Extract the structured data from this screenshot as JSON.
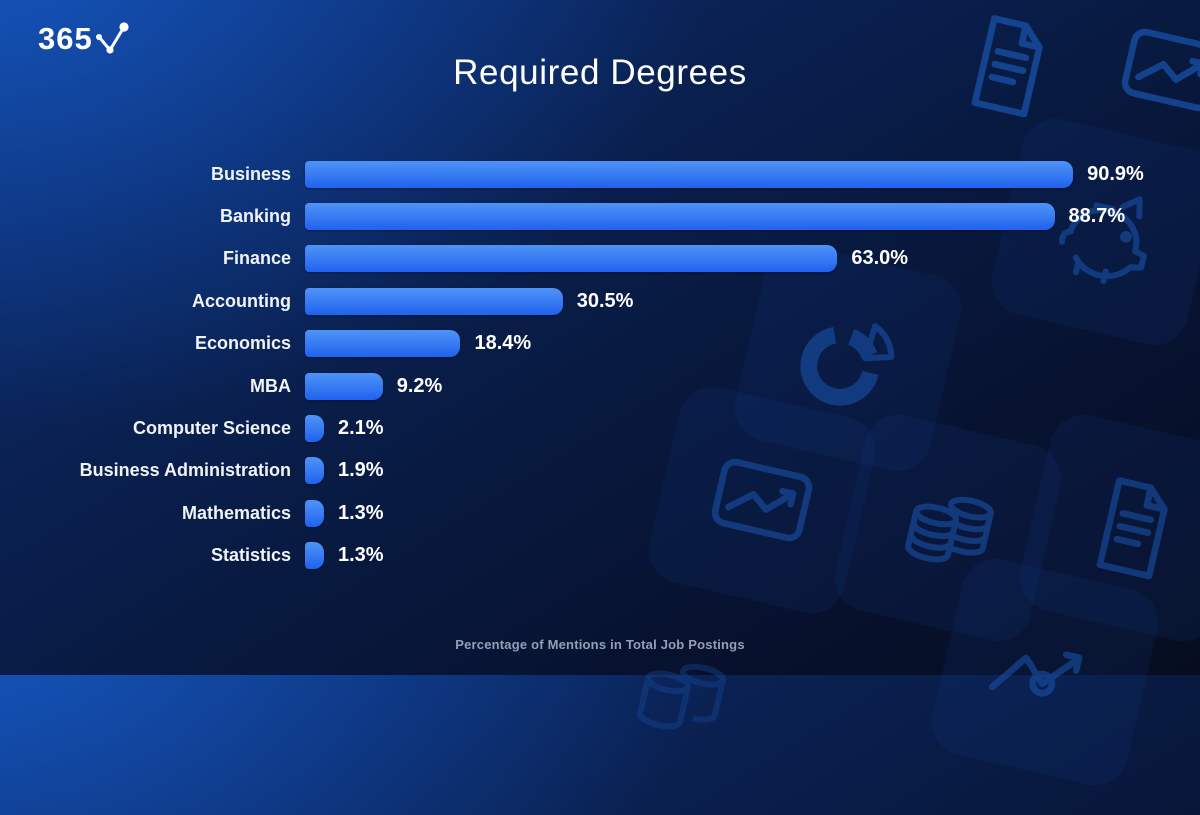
{
  "brand": {
    "logo_text": "365",
    "logo_icon": "line-chart-check-icon"
  },
  "title": "Required Degrees",
  "caption": "Percentage of Mentions in Total Job Postings",
  "chart_data": {
    "type": "bar",
    "orientation": "horizontal",
    "title": "Required Degrees",
    "xlabel": "Percentage of Mentions in Total Job Postings",
    "xlim": [
      0,
      100
    ],
    "grid": false,
    "legend": false,
    "categories": [
      "Business",
      "Banking",
      "Finance",
      "Accounting",
      "Economics",
      "MBA",
      "Computer Science",
      "Business Administration",
      "Mathematics",
      "Statistics"
    ],
    "values": [
      90.9,
      88.7,
      63.0,
      30.5,
      18.4,
      9.2,
      2.1,
      1.9,
      1.3,
      1.3
    ],
    "value_labels": [
      "90.9%",
      "88.7%",
      "63.0%",
      "30.5%",
      "18.4%",
      "9.2%",
      "2.1%",
      "1.9%",
      "1.3%",
      "1.3%"
    ],
    "bar_color_top": "#4f93f7",
    "bar_color_bottom": "#1f62ee"
  },
  "colors": {
    "background_top_left": "#0c45a4",
    "background_bottom": "#060d20",
    "label_text": "#f0f3f8",
    "value_text": "#ffffff",
    "caption_text": "#93a0b4",
    "decor_icon_stroke": "#1a55b0"
  },
  "background": {
    "icons": [
      "document-icon",
      "trend-card-icon",
      "piggy-bank-icon",
      "donut-chart-icon",
      "trend-card-icon",
      "coins-icon",
      "document-icon",
      "trend-line-icon",
      "coins-icon"
    ]
  }
}
